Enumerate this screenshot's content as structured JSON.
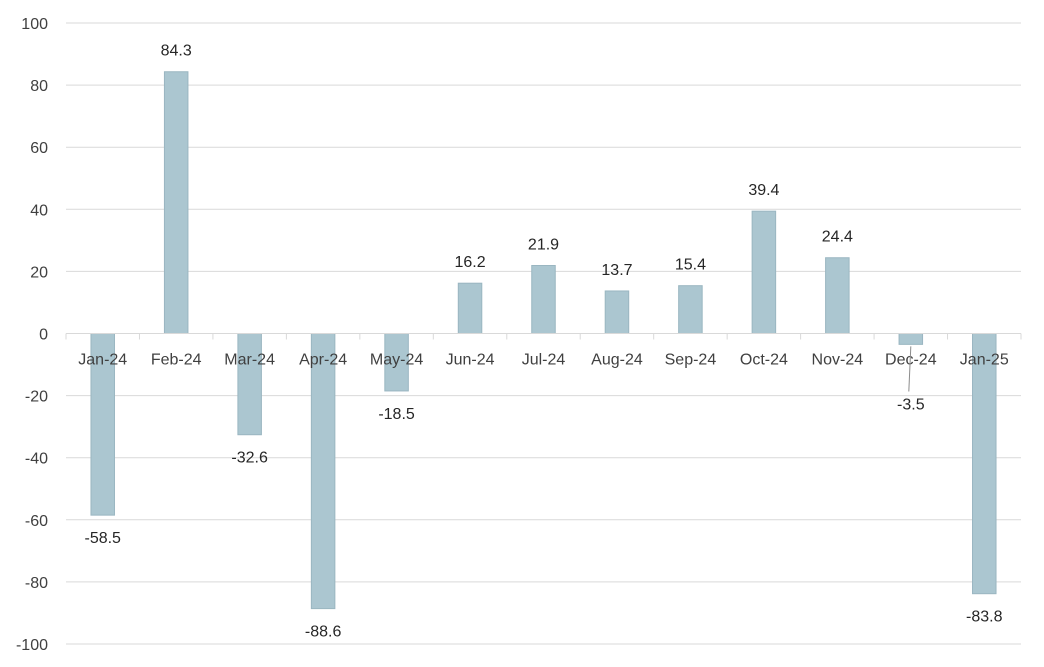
{
  "chart_data": {
    "type": "bar",
    "title": "",
    "xlabel": "",
    "ylabel": "",
    "ylim": [
      -100,
      100
    ],
    "yticks": [
      100,
      80,
      60,
      40,
      20,
      0,
      -20,
      -40,
      -60,
      -80,
      -100
    ],
    "grid": true,
    "legend": "none",
    "bar_color": "#abc6d0",
    "categories": [
      "Jan-24",
      "Feb-24",
      "Mar-24",
      "Apr-24",
      "May-24",
      "Jun-24",
      "Jul-24",
      "Aug-24",
      "Sep-24",
      "Oct-24",
      "Nov-24",
      "Dec-24",
      "Jan-25"
    ],
    "values": [
      -58.5,
      84.3,
      -32.6,
      -88.6,
      -18.5,
      16.2,
      21.9,
      13.7,
      15.4,
      39.4,
      24.4,
      -3.5,
      -83.8
    ],
    "data_labels": [
      "-58.5",
      "84.3",
      "-32.6",
      "-88.6",
      "-18.5",
      "16.2",
      "21.9",
      "13.7",
      "15.4",
      "39.4",
      "24.4",
      "-3.5",
      "-83.8"
    ]
  }
}
